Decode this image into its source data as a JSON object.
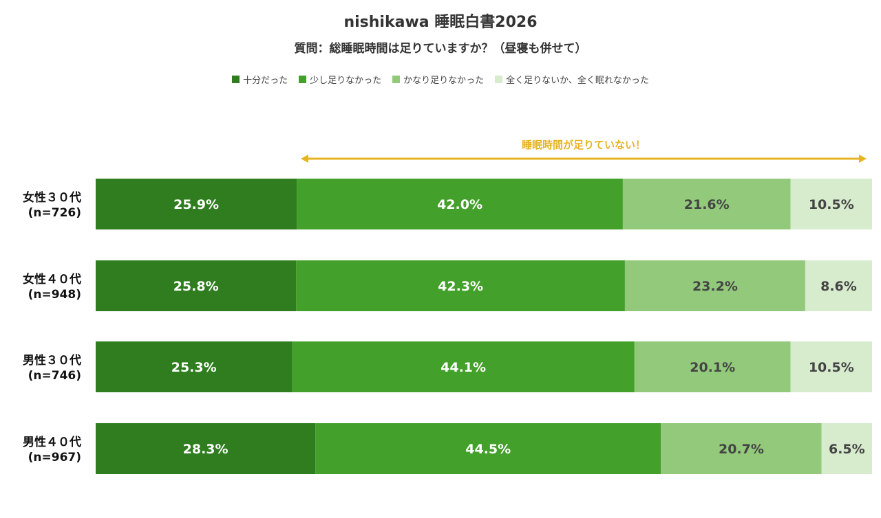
{
  "chart_data": {
    "type": "bar",
    "orientation": "horizontal-stacked-100",
    "title": "nishikawa 睡眠白書2026",
    "subtitle": "質問：総睡眠時間は足りていますか？（昼寝も併せて）",
    "legend_placement": "top",
    "annotation": "睡眠時間が足りていない！",
    "annotation_color": "#e6b422",
    "categories": [
      {
        "label": "女性３０代",
        "n": "(n=726)"
      },
      {
        "label": "女性４０代",
        "n": "(n=948)"
      },
      {
        "label": "男性３０代",
        "n": "(n=746)"
      },
      {
        "label": "男性４０代",
        "n": "(n=967)"
      }
    ],
    "series": [
      {
        "name": "十分だった",
        "color": "#2f7d1f",
        "text_color": "#ffffff",
        "values": [
          25.9,
          25.8,
          25.3,
          28.3
        ],
        "labels": [
          "25.9%",
          "25.8%",
          "25.3%",
          "28.3%"
        ]
      },
      {
        "name": "少し足りなかった",
        "color": "#43a02a",
        "text_color": "#ffffff",
        "values": [
          42.0,
          42.3,
          44.1,
          44.5
        ],
        "labels": [
          "42.0%",
          "42.3%",
          "44.1%",
          "44.5%"
        ]
      },
      {
        "name": "かなり足りなかった",
        "color": "#92c97b",
        "text_color": "#444444",
        "values": [
          21.6,
          23.2,
          20.1,
          20.7
        ],
        "labels": [
          "21.6%",
          "23.2%",
          "20.1%",
          "20.7%"
        ]
      },
      {
        "name": "全く足りないか、全く眠れなかった",
        "color": "#d7ebcd",
        "text_color": "#444444",
        "values": [
          10.5,
          8.6,
          10.5,
          6.5
        ],
        "labels": [
          "10.5%",
          "8.6%",
          "10.5%",
          "6.5%"
        ]
      }
    ],
    "xlim": [
      0,
      100
    ]
  }
}
